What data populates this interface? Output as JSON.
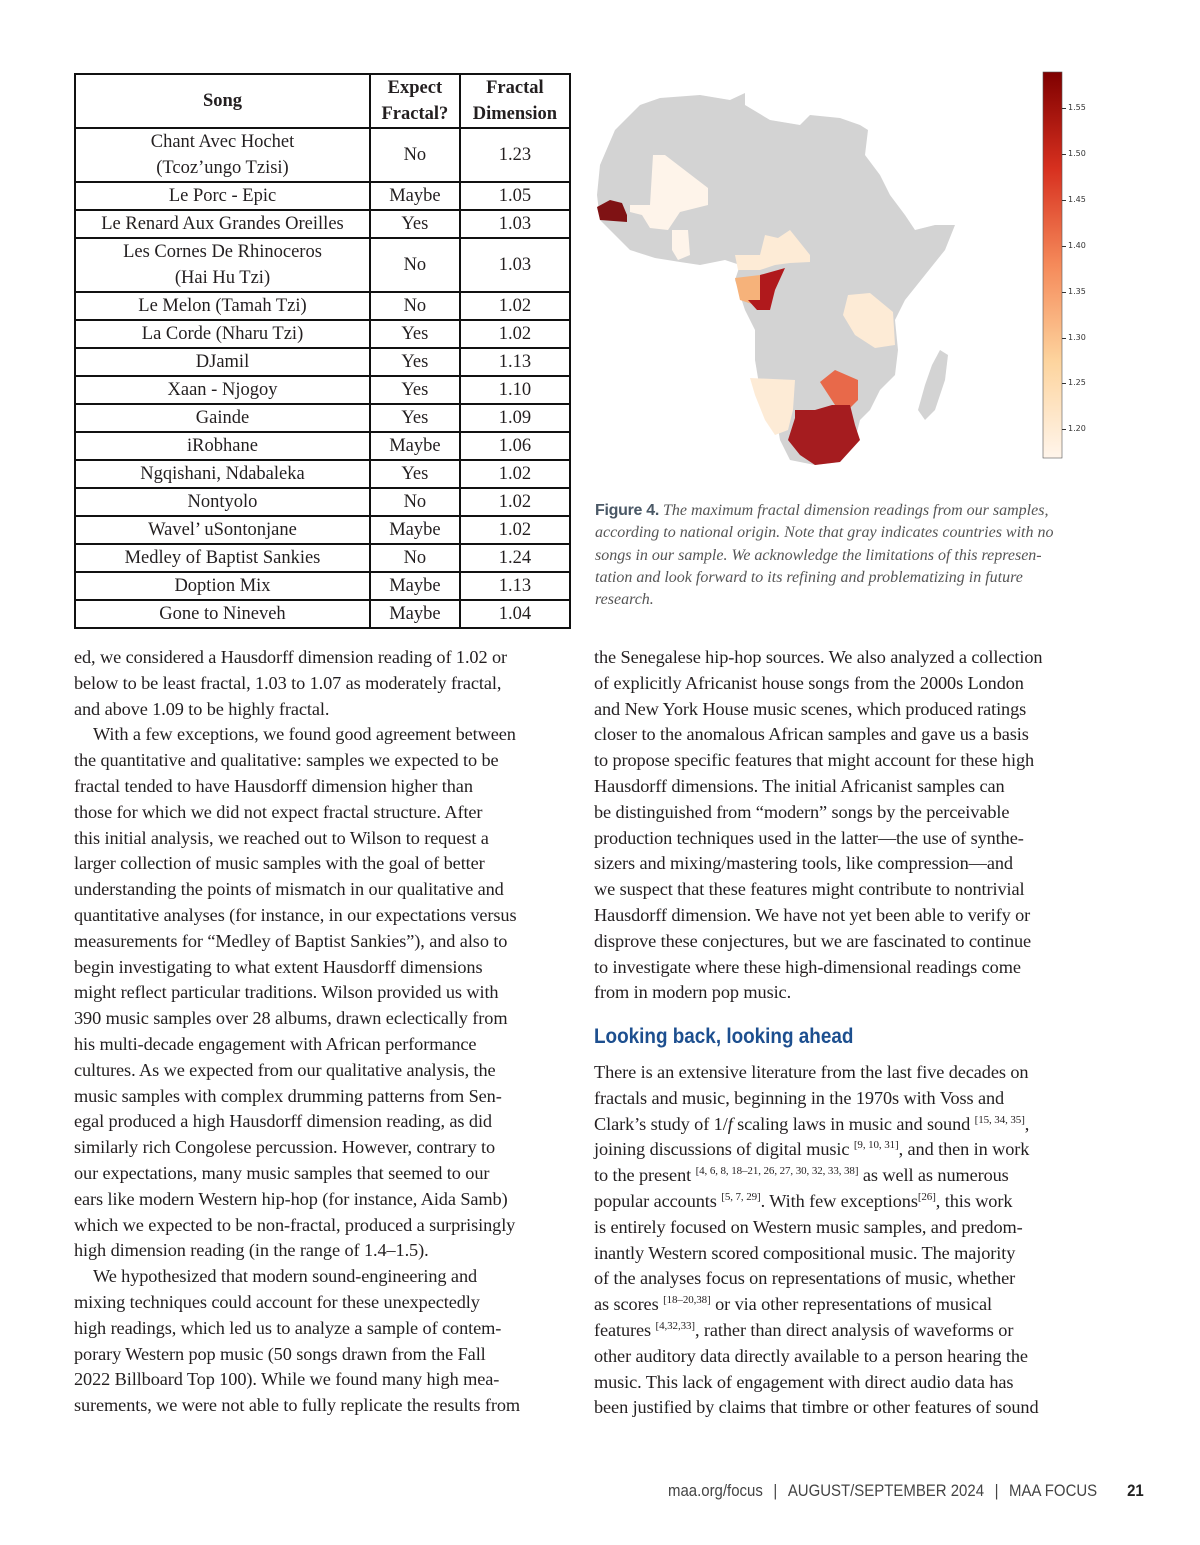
{
  "table": {
    "headers": {
      "song": "Song",
      "expect_1": "Expect",
      "expect_2": "Fractal?",
      "dim_1": "Fractal",
      "dim_2": "Dimension"
    },
    "rows": [
      {
        "song": [
          "Chant Avec Hochet",
          "(Tcoz’ungo Tzisi)"
        ],
        "expect": "No",
        "dim": "1.23"
      },
      {
        "song": [
          "Le Porc - Epic"
        ],
        "expect": "Maybe",
        "dim": "1.05"
      },
      {
        "song": [
          "Le Renard Aux Grandes Oreilles"
        ],
        "expect": "Yes",
        "dim": "1.03"
      },
      {
        "song": [
          "Les Cornes De Rhinoceros",
          "(Hai Hu Tzi)"
        ],
        "expect": "No",
        "dim": "1.03"
      },
      {
        "song": [
          "Le Melon (Tamah Tzi)"
        ],
        "expect": "No",
        "dim": "1.02"
      },
      {
        "song": [
          "La Corde (Nharu Tzi)"
        ],
        "expect": "Yes",
        "dim": "1.02"
      },
      {
        "song": [
          "DJamil"
        ],
        "expect": "Yes",
        "dim": "1.13"
      },
      {
        "song": [
          "Xaan - Njogoy"
        ],
        "expect": "Yes",
        "dim": "1.10"
      },
      {
        "song": [
          "Gainde"
        ],
        "expect": "Yes",
        "dim": "1.09"
      },
      {
        "song": [
          "iRobhane"
        ],
        "expect": "Maybe",
        "dim": "1.06"
      },
      {
        "song": [
          "Ngqishani, Ndabaleka"
        ],
        "expect": "Yes",
        "dim": "1.02"
      },
      {
        "song": [
          "Nontyolo"
        ],
        "expect": "No",
        "dim": "1.02"
      },
      {
        "song": [
          "Wavel’ uSontonjane"
        ],
        "expect": "Maybe",
        "dim": "1.02"
      },
      {
        "song": [
          "Medley of Baptist Sankies"
        ],
        "expect": "No",
        "dim": "1.24"
      },
      {
        "song": [
          "Doption Mix"
        ],
        "expect": "Maybe",
        "dim": "1.13"
      },
      {
        "song": [
          "Gone to Nineveh"
        ],
        "expect": "Maybe",
        "dim": "1.04"
      }
    ]
  },
  "figure": {
    "colorbar_ticks": [
      "1.55",
      "1.50",
      "1.45",
      "1.40",
      "1.35",
      "1.30",
      "1.25",
      "1.20"
    ],
    "colorbar_range": [
      1.17,
      1.59
    ],
    "colors": {
      "no_data": "#d3d3d3",
      "senegal": "#7f1214",
      "congo": "#b0191c",
      "south_africa": "#a51c1f",
      "zimbabwe": "#e8694a",
      "gabon": "#f6b27a",
      "pale": "#fdebd6",
      "palest": "#fef4ea"
    },
    "caption_label": "Figure 4.",
    "caption_lines": [
      "The maximum fractal dimension readings from our samples,",
      "according to national origin. Note that gray indicates countries with no",
      "songs in our sample. We acknowledge the limitations of this represen-",
      "tation and look forward to its refining and problematizing in future",
      "research."
    ]
  },
  "left_column": [
    [
      "ed, we considered a Hausdorff dimension reading of 1.02 or"
    ],
    [
      "below to be least fractal, 1.03 to 1.07 as moderately fractal,"
    ],
    [
      "and above 1.09 to be highly fractal."
    ],
    [
      "With a few exceptions, we found good agreement between"
    ],
    [
      "the quantitative and qualitative: samples we expected to be"
    ],
    [
      "fractal tended to have Hausdorff dimension higher than"
    ],
    [
      "those for which we did not expect fractal structure. After"
    ],
    [
      "this initial analysis, we reached out to Wilson to request a"
    ],
    [
      "larger collection of music samples with the goal of better"
    ],
    [
      "understanding the points of mismatch in our qualitative and"
    ],
    [
      "quantitative analyses (for instance, in our expectations versus"
    ],
    [
      "measurements for “Medley of Baptist Sankies”), and also to"
    ],
    [
      "begin investigating to what extent Hausdorff dimensions"
    ],
    [
      "might reflect particular traditions. Wilson provided us with"
    ],
    [
      "390 music samples over 28 albums, drawn eclectically from"
    ],
    [
      "his multi-decade engagement with African performance"
    ],
    [
      "cultures. As we expected from our qualitative analysis, the"
    ],
    [
      "music samples with complex drumming patterns from Sen-"
    ],
    [
      "egal produced a high Hausdorff dimension reading, as did"
    ],
    [
      "similarly rich Congolese percussion. However, contrary to"
    ],
    [
      "our expectations, many music samples that seemed to our"
    ],
    [
      "ears like modern Western hip-hop (for instance, Aida Samb)"
    ],
    [
      "which we expected to be non-fractal, produced a surprisingly"
    ],
    [
      "high dimension reading (in the range of 1.4–1.5)."
    ],
    [
      "We hypothesized that modern sound-engineering and"
    ],
    [
      "mixing techniques could account for these unexpectedly"
    ],
    [
      "high readings, which led us to analyze a sample of contem-"
    ],
    [
      "porary Western pop music (50 songs drawn from the Fall"
    ],
    [
      "2022 Billboard Top 100). While we found many high mea-"
    ],
    [
      "surements, we were not able to fully replicate the results from"
    ]
  ],
  "right_column_1": [
    [
      "the Senegalese hip-hop sources. We also analyzed a collection"
    ],
    [
      "of explicitly Africanist house songs from the 2000s London"
    ],
    [
      "and New York House music scenes, which produced ratings"
    ],
    [
      "closer to the anomalous African samples and gave us a basis"
    ],
    [
      "to propose specific features that might account for these high"
    ],
    [
      "Hausdorff dimensions. The initial Africanist samples can"
    ],
    [
      "be distinguished from “modern” songs by the perceivable"
    ],
    [
      "production techniques used in the latter—the use of synthe-"
    ],
    [
      "sizers and mixing/mastering tools, like compression—and"
    ],
    [
      "we suspect that these features might contribute to nontrivial"
    ],
    [
      "Hausdorff dimension. We have not yet been able to verify or"
    ],
    [
      "disprove these conjectures, but we are fascinated to continue"
    ],
    [
      "to investigate where these high-dimensional readings come"
    ],
    [
      "from in modern pop music."
    ]
  ],
  "heading": "Looking back, looking ahead",
  "right_column_2": [
    [
      "There is an extensive literature from the last five decades on"
    ],
    [
      "fractals and music, beginning in the 1970s with Voss and"
    ],
    [
      "Clark’s study of 1/",
      {
        "i": "f"
      },
      " scaling laws in music and sound ",
      {
        "sup": "[15, 34, 35]"
      },
      ","
    ],
    [
      "joining discussions of digital music ",
      {
        "sup": "[9, 10, 31]"
      },
      ", and then in work"
    ],
    [
      "to the present ",
      {
        "sup": "[4, 6, 8, 18–21, 26, 27, 30, 32, 33, 38]"
      },
      " as well as numerous"
    ],
    [
      "popular accounts ",
      {
        "sup": "[5, 7, 29]"
      },
      ". With few exceptions",
      {
        "sup": "[26]"
      },
      ", this work"
    ],
    [
      "is entirely focused on Western music samples, and predom-"
    ],
    [
      "inantly Western scored compositional music. The majority"
    ],
    [
      "of the analyses focus on representations of music, whether"
    ],
    [
      "as scores ",
      {
        "sup": "[18–20,38]"
      },
      " or via other representations of musical"
    ],
    [
      "features ",
      {
        "sup": "[4,32,33]"
      },
      ", rather than direct analysis of waveforms or"
    ],
    [
      "other auditory data directly available to a person hearing the"
    ],
    [
      "music. This lack of engagement with direct audio data has"
    ],
    [
      "been justified by claims that timbre or other features of sound"
    ]
  ],
  "footer": {
    "site": "maa.org/focus",
    "issue": "AUGUST/SEPTEMBER 2024",
    "magazine": "MAA FOCUS",
    "sep": "|",
    "page": "21"
  }
}
